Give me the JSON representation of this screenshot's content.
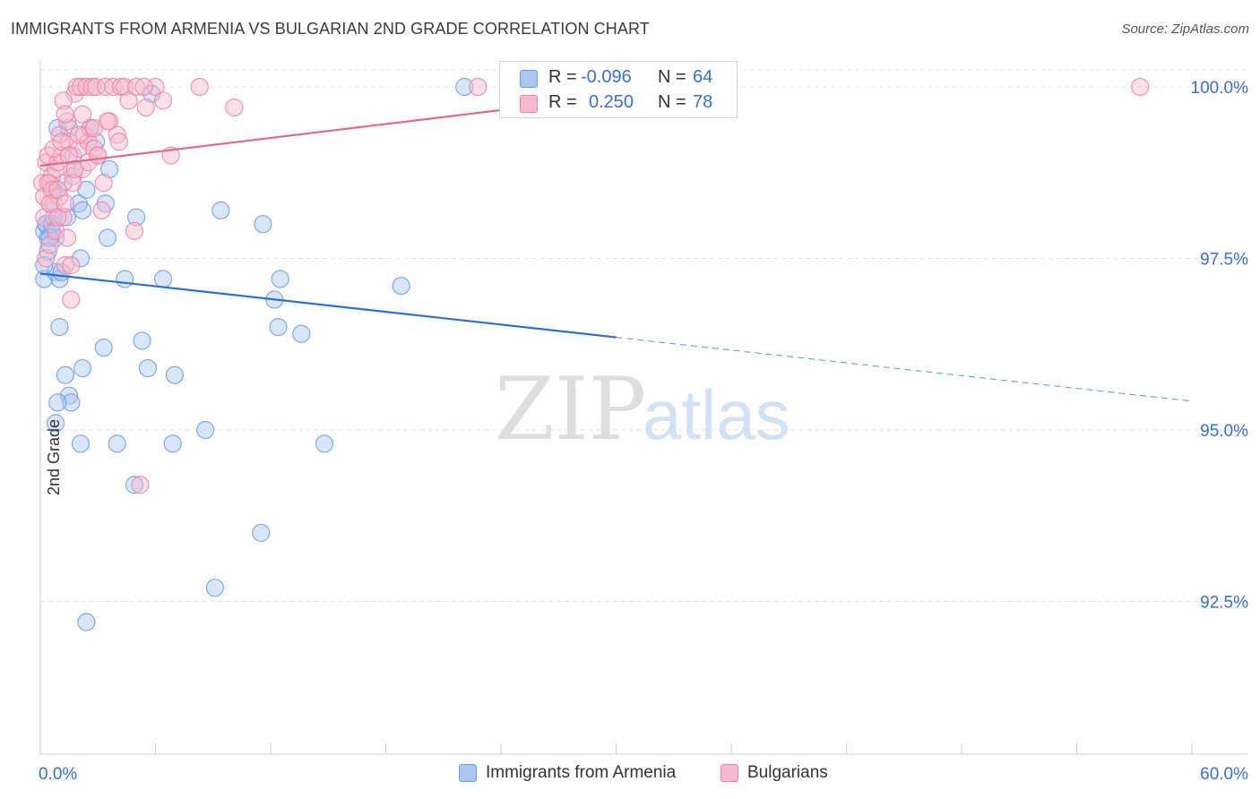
{
  "title": "IMMIGRANTS FROM ARMENIA VS BULGARIAN 2ND GRADE CORRELATION CHART",
  "source": "Source: ZipAtlas.com",
  "watermark": {
    "zip": "ZIP",
    "atlas": "atlas"
  },
  "legend_top": {
    "rows": [
      {
        "r_label": "R =",
        "r_value": "-0.096",
        "n_label": "N =",
        "n_value": "64",
        "color": "#a9c7f0",
        "border": "#6e9be0"
      },
      {
        "r_label": "R =",
        "r_value": "0.250",
        "n_label": "N =",
        "n_value": "78",
        "color": "#f7b9cd",
        "border": "#ea85a6"
      }
    ]
  },
  "legend_bottom": {
    "items": [
      {
        "label": "Immigrants from Armenia",
        "color": "#a9c7f0",
        "border": "#6e9be0"
      },
      {
        "label": "Bulgarians",
        "color": "#f7b9cd",
        "border": "#ea85a6"
      }
    ]
  },
  "chart_data": {
    "type": "scatter",
    "title": "IMMIGRANTS FROM ARMENIA VS BULGARIAN 2ND GRADE CORRELATION CHART",
    "xlabel": "",
    "ylabel": "2nd Grade",
    "xlim": [
      0,
      60
    ],
    "ylim": [
      90.3,
      100.6
    ],
    "x_tick_labels": [
      {
        "value": 0,
        "label": "0.0%"
      },
      {
        "value": 60,
        "label": "60.0%"
      }
    ],
    "y_tick_labels": [
      {
        "value": 100.0,
        "label": "100.0%"
      },
      {
        "value": 97.5,
        "label": "97.5%"
      },
      {
        "value": 95.0,
        "label": "95.0%"
      },
      {
        "value": 92.5,
        "label": "92.5%"
      }
    ],
    "grid": true,
    "series": [
      {
        "name": "Immigrants from Armenia",
        "color": "#6e9be0",
        "fill": "#a9c7f0",
        "trend": {
          "x": [
            0,
            30,
            60
          ],
          "y": [
            97.28,
            96.35,
            95.42
          ],
          "solid_to": 30
        },
        "points": [
          [
            0.2,
            97.9
          ],
          [
            0.2,
            97.2
          ],
          [
            0.3,
            98.0
          ],
          [
            0.4,
            97.8
          ],
          [
            0.5,
            98.3
          ],
          [
            0.6,
            97.9
          ],
          [
            0.7,
            98.5
          ],
          [
            0.8,
            97.3
          ],
          [
            0.8,
            97.8
          ],
          [
            0.9,
            99.4
          ],
          [
            1.0,
            96.5
          ],
          [
            1.0,
            97.2
          ],
          [
            1.2,
            98.6
          ],
          [
            1.3,
            95.8
          ],
          [
            1.4,
            98.1
          ],
          [
            1.5,
            95.5
          ],
          [
            1.6,
            95.4
          ],
          [
            1.7,
            99.0
          ],
          [
            1.8,
            98.8
          ],
          [
            2.0,
            98.3
          ],
          [
            2.1,
            97.5
          ],
          [
            2.2,
            98.2
          ],
          [
            2.4,
            98.5
          ],
          [
            2.6,
            99.4
          ],
          [
            3.4,
            98.3
          ],
          [
            3.5,
            97.8
          ],
          [
            4.4,
            97.2
          ],
          [
            5.0,
            98.1
          ],
          [
            6.4,
            97.2
          ],
          [
            7.0,
            95.8
          ],
          [
            9.4,
            98.2
          ],
          [
            11.6,
            98.0
          ],
          [
            12.5,
            97.2
          ],
          [
            12.2,
            96.9
          ],
          [
            12.4,
            96.5
          ],
          [
            13.6,
            96.4
          ],
          [
            14.8,
            94.8
          ],
          [
            18.8,
            97.1
          ],
          [
            0.3,
            98.0
          ],
          [
            0.5,
            97.8
          ],
          [
            0.9,
            95.4
          ],
          [
            0.8,
            95.1
          ],
          [
            1.5,
            99.4
          ],
          [
            2.1,
            94.8
          ],
          [
            2.4,
            92.2
          ],
          [
            2.2,
            95.9
          ],
          [
            3.3,
            96.2
          ],
          [
            4.0,
            94.8
          ],
          [
            4.9,
            94.2
          ],
          [
            5.3,
            96.3
          ],
          [
            5.6,
            95.9
          ],
          [
            6.9,
            94.8
          ],
          [
            8.6,
            95.0
          ],
          [
            9.1,
            92.7
          ],
          [
            11.5,
            93.5
          ],
          [
            22.1,
            100.0
          ],
          [
            0.6,
            98.0
          ],
          [
            0.4,
            97.6
          ],
          [
            1.1,
            97.3
          ],
          [
            3.6,
            98.8
          ],
          [
            0.2,
            97.4
          ],
          [
            0.7,
            98.1
          ],
          [
            2.9,
            99.2
          ],
          [
            5.8,
            99.9
          ]
        ]
      },
      {
        "name": "Bulgarians",
        "color": "#ea85a6",
        "fill": "#f7b9cd",
        "trend": {
          "x": [
            0,
            34
          ],
          "y": [
            98.85,
            100.0
          ],
          "solid_to": 34
        },
        "points": [
          [
            0.1,
            98.6
          ],
          [
            0.2,
            98.4
          ],
          [
            0.3,
            98.9
          ],
          [
            0.4,
            99.0
          ],
          [
            0.5,
            98.6
          ],
          [
            0.6,
            98.7
          ],
          [
            0.7,
            98.3
          ],
          [
            0.8,
            98.8
          ],
          [
            0.9,
            98.9
          ],
          [
            1.0,
            99.3
          ],
          [
            1.1,
            99.0
          ],
          [
            1.2,
            98.1
          ],
          [
            1.3,
            97.4
          ],
          [
            1.4,
            99.5
          ],
          [
            1.5,
            99.2
          ],
          [
            1.6,
            96.9
          ],
          [
            1.7,
            98.7
          ],
          [
            1.8,
            99.9
          ],
          [
            1.9,
            100.0
          ],
          [
            2.0,
            99.1
          ],
          [
            2.1,
            100.0
          ],
          [
            2.2,
            98.8
          ],
          [
            2.3,
            99.3
          ],
          [
            2.4,
            100.0
          ],
          [
            2.5,
            99.2
          ],
          [
            2.6,
            99.4
          ],
          [
            2.7,
            100.0
          ],
          [
            2.8,
            99.1
          ],
          [
            2.9,
            100.0
          ],
          [
            3.0,
            99.0
          ],
          [
            3.2,
            98.2
          ],
          [
            3.4,
            100.0
          ],
          [
            3.6,
            99.5
          ],
          [
            3.8,
            100.0
          ],
          [
            4.0,
            99.3
          ],
          [
            4.2,
            100.0
          ],
          [
            4.4,
            100.0
          ],
          [
            4.6,
            99.8
          ],
          [
            4.9,
            97.9
          ],
          [
            5.0,
            100.0
          ],
          [
            5.2,
            94.2
          ],
          [
            5.5,
            99.7
          ],
          [
            6.0,
            100.0
          ],
          [
            6.4,
            99.8
          ],
          [
            6.8,
            99.0
          ],
          [
            8.3,
            100.0
          ],
          [
            10.1,
            99.7
          ],
          [
            22.8,
            100.0
          ],
          [
            57.3,
            100.0
          ],
          [
            0.2,
            98.1
          ],
          [
            0.3,
            97.5
          ],
          [
            0.4,
            98.6
          ],
          [
            0.5,
            97.7
          ],
          [
            0.6,
            98.5
          ],
          [
            0.7,
            99.1
          ],
          [
            0.8,
            97.9
          ],
          [
            0.9,
            98.1
          ],
          [
            1.0,
            98.4
          ],
          [
            1.1,
            99.2
          ],
          [
            1.2,
            99.8
          ],
          [
            1.3,
            99.6
          ],
          [
            1.4,
            97.8
          ],
          [
            1.5,
            99.0
          ],
          [
            1.6,
            97.4
          ],
          [
            1.7,
            98.6
          ],
          [
            1.8,
            98.8
          ],
          [
            2.0,
            99.3
          ],
          [
            2.2,
            99.6
          ],
          [
            2.5,
            98.9
          ],
          [
            2.8,
            99.4
          ],
          [
            3.0,
            99.0
          ],
          [
            3.3,
            98.6
          ],
          [
            3.5,
            99.5
          ],
          [
            4.1,
            99.2
          ],
          [
            5.4,
            100.0
          ],
          [
            0.5,
            98.3
          ],
          [
            0.9,
            98.5
          ],
          [
            1.3,
            98.3
          ]
        ]
      }
    ]
  }
}
